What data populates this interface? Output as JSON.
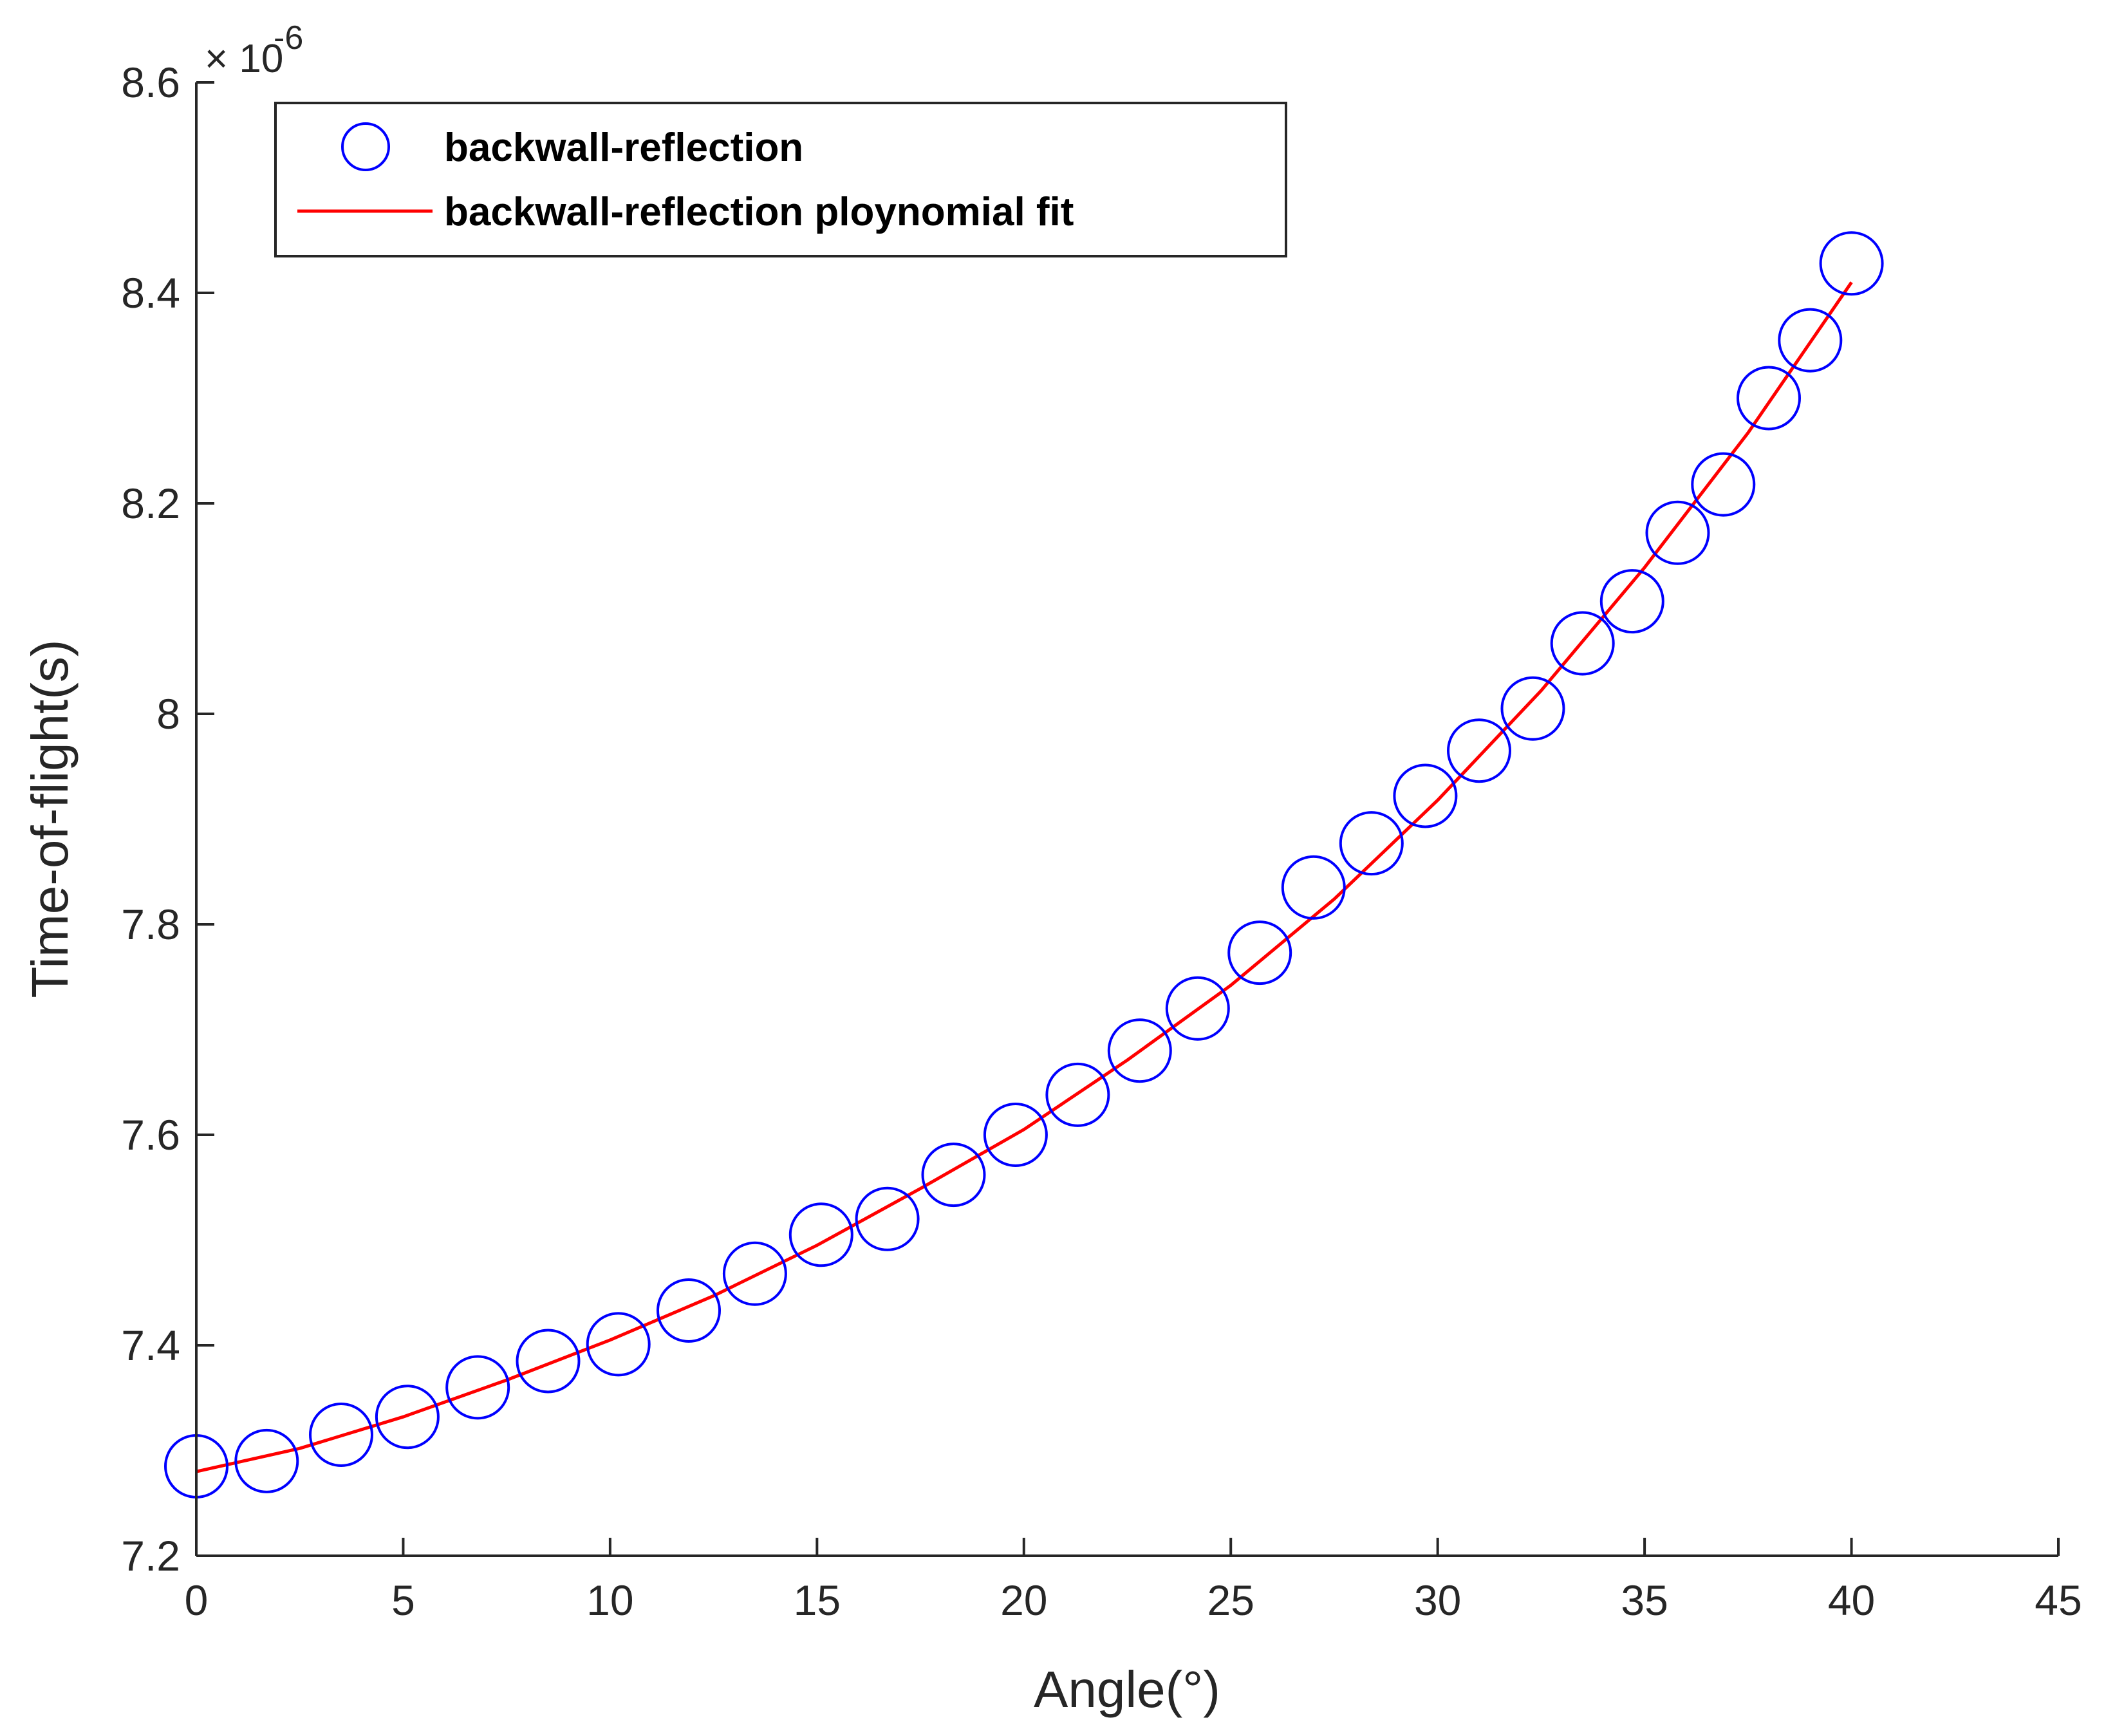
{
  "chart_data": {
    "type": "scatter",
    "title": "",
    "xlabel": "Angle(°)",
    "ylabel": "Time-of-flight(s)",
    "xlim": [
      0,
      45
    ],
    "ylim": [
      7.2,
      8.6
    ],
    "y_multiplier_label": "× 10",
    "y_multiplier_exponent": "-6",
    "xticks": [
      0,
      5,
      10,
      15,
      20,
      25,
      30,
      35,
      40,
      45
    ],
    "xtick_labels": [
      "0",
      "5",
      "10",
      "15",
      "20",
      "25",
      "30",
      "35",
      "40",
      "45"
    ],
    "yticks": [
      7.2,
      7.4,
      7.6,
      7.8,
      8.0,
      8.2,
      8.4,
      8.6
    ],
    "ytick_labels": [
      "7.2",
      "7.4",
      "7.6",
      "7.8",
      "8",
      "8.2",
      "8.4",
      "8.6"
    ],
    "grid": false,
    "legend_position": "top-left",
    "series": [
      {
        "name": "backwall-reflection",
        "kind": "markers",
        "marker": "circle",
        "color": "#0000ff",
        "x": [
          0.0,
          1.7,
          3.5,
          5.1,
          6.8,
          8.5,
          10.2,
          11.9,
          13.5,
          15.1,
          16.7,
          18.3,
          19.8,
          21.3,
          22.8,
          24.2,
          25.7,
          27.0,
          28.4,
          29.7,
          31.0,
          32.3,
          33.5,
          34.7,
          35.8,
          36.9,
          38.0,
          39.0,
          40.0
        ],
        "y": [
          7.285,
          7.29,
          7.315,
          7.332,
          7.36,
          7.385,
          7.401,
          7.433,
          7.468,
          7.505,
          7.52,
          7.562,
          7.6,
          7.638,
          7.68,
          7.72,
          7.773,
          7.835,
          7.877,
          7.922,
          7.965,
          8.005,
          8.067,
          8.107,
          8.172,
          8.218,
          8.3,
          8.355,
          8.428
        ]
      },
      {
        "name": "backwall-reflection ploynomial fit",
        "kind": "line",
        "color": "#ff0000",
        "x": [
          0,
          2.5,
          5,
          7.5,
          10,
          12.5,
          15,
          17.5,
          20,
          22.5,
          25,
          27.5,
          30,
          32.5,
          35,
          37.5,
          40
        ],
        "y": [
          7.28,
          7.302,
          7.332,
          7.367,
          7.405,
          7.447,
          7.495,
          7.549,
          7.605,
          7.671,
          7.742,
          7.824,
          7.918,
          8.022,
          8.139,
          8.267,
          8.41
        ]
      }
    ]
  }
}
